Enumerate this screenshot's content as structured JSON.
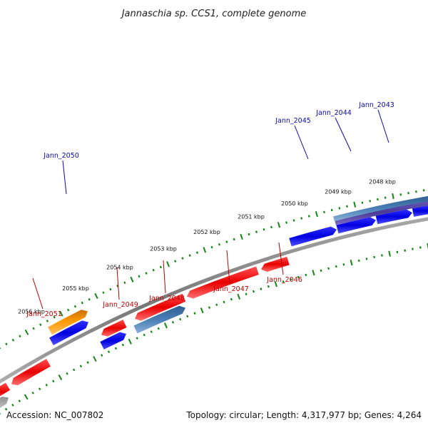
{
  "title": "Jannaschia sp. CCS1, complete genome",
  "footer": {
    "accession": "Accession: NC_007802",
    "summary": "Topology: circular; Length: 4,317,977 bp; Genes: 4,264"
  },
  "colors": {
    "forward_gene": "#e80000",
    "reverse_gene": "#0000e0",
    "rna_gene": "#ff9900",
    "steel_gene": "#4a7fb5",
    "purple_gene": "#4b3a96",
    "pseudo_gene": "#b8b8b8",
    "backbone": "#888888",
    "tick": "#118811"
  },
  "ticks": [
    {
      "label": "2048 kbp"
    },
    {
      "label": "2049 kbp"
    },
    {
      "label": "2050 kbp"
    },
    {
      "label": "2051 kbp"
    },
    {
      "label": "2052 kbp"
    },
    {
      "label": "2053 kbp"
    },
    {
      "label": "2054 kbp"
    },
    {
      "label": "2055 kbp"
    },
    {
      "label": "2056 kbp"
    }
  ],
  "gene_labels": {
    "top": [
      {
        "name": "Jann_2043"
      },
      {
        "name": "Jann_2044"
      },
      {
        "name": "Jann_2045"
      },
      {
        "name": "Jann_2050"
      }
    ],
    "bottom": [
      {
        "name": "Jann_2046"
      },
      {
        "name": "Jann_2047"
      },
      {
        "name": "Jann_2048"
      },
      {
        "name": "Jann_2049"
      },
      {
        "name": "Jann_2051"
      }
    ]
  }
}
